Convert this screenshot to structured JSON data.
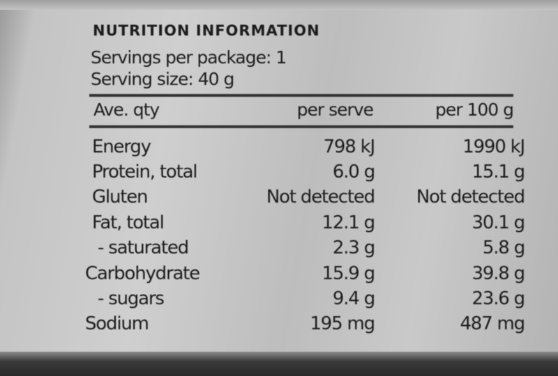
{
  "title": "NUTRITION INFORMATION",
  "servings_per_package": "Servings per package: 1",
  "serving_size": "Serving size: 40 g",
  "headers": [
    "Ave. qty",
    "per serve",
    "per 100 g"
  ],
  "rows": [
    {
      "name": "Energy",
      "per_serve": "798 kJ",
      "per_100g": "1990 kJ"
    },
    {
      "name": "Protein, total",
      "per_serve": "6.0 g",
      "per_100g": "15.1 g"
    },
    {
      "name": "Gluten",
      "per_serve": "Not detected",
      "per_100g": "Not detected"
    },
    {
      "name": "Fat, total",
      "per_serve": "12.1 g",
      "per_100g": "30.1 g"
    },
    {
      "name": "- saturated",
      "per_serve": "2.3 g",
      "per_100g": "5.8 g"
    },
    {
      "name": "Carbohydrate",
      "per_serve": "15.9 g",
      "per_100g": "39.8 g"
    },
    {
      "name": "- sugars",
      "per_serve": "9.4 g",
      "per_100g": "23.6 g"
    },
    {
      "name": "Sodium",
      "per_serve": "195 mg",
      "per_100g": "487 mg"
    }
  ]
}
